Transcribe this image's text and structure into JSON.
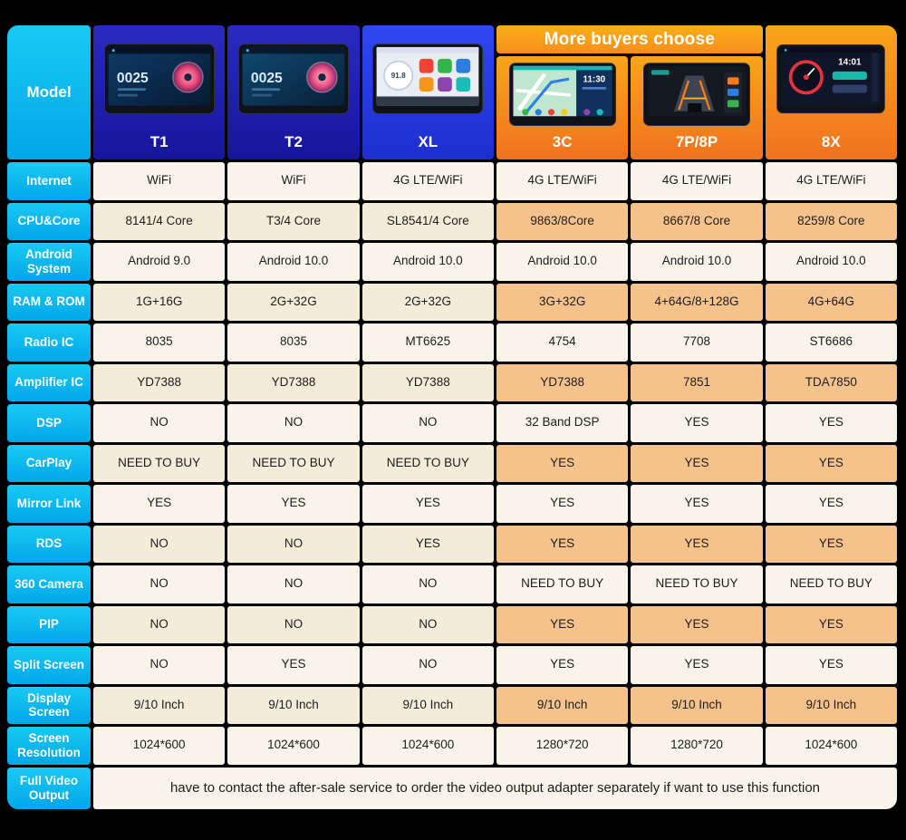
{
  "banner": {
    "text": "More buyers choose"
  },
  "model_header": {
    "label": "Model"
  },
  "chart_data": {
    "type": "table",
    "title": "Car stereo head unit model comparison",
    "columns": [
      "T1",
      "T2",
      "XL",
      "3C",
      "7P/8P",
      "8X"
    ],
    "highlighted_columns": [
      "3C",
      "7P/8P",
      "8X"
    ],
    "rows": [
      {
        "label": "Internet",
        "values": [
          "WiFi",
          "WiFi",
          "4G LTE/WiFi",
          "4G LTE/WiFi",
          "4G LTE/WiFi",
          "4G LTE/WiFi"
        ]
      },
      {
        "label": "CPU&Core",
        "values": [
          "8141/4 Core",
          "T3/4 Core",
          "SL8541/4 Core",
          "9863/8Core",
          "8667/8 Core",
          "8259/8 Core"
        ]
      },
      {
        "label": "Android System",
        "values": [
          "Android 9.0",
          "Android 10.0",
          "Android 10.0",
          "Android 10.0",
          "Android 10.0",
          "Android 10.0"
        ]
      },
      {
        "label": "RAM & ROM",
        "values": [
          "1G+16G",
          "2G+32G",
          "2G+32G",
          "3G+32G",
          "4+64G/8+128G",
          "4G+64G"
        ]
      },
      {
        "label": "Radio IC",
        "values": [
          "8035",
          "8035",
          "MT6625",
          "4754",
          "7708",
          "ST6686"
        ]
      },
      {
        "label": "Amplifier IC",
        "values": [
          "YD7388",
          "YD7388",
          "YD7388",
          "YD7388",
          "7851",
          "TDA7850"
        ]
      },
      {
        "label": "DSP",
        "values": [
          "NO",
          "NO",
          "NO",
          "32 Band DSP",
          "YES",
          "YES"
        ]
      },
      {
        "label": "CarPlay",
        "values": [
          "NEED TO BUY",
          "NEED TO BUY",
          "NEED TO BUY",
          "YES",
          "YES",
          "YES"
        ]
      },
      {
        "label": "Mirror Link",
        "values": [
          "YES",
          "YES",
          "YES",
          "YES",
          "YES",
          "YES"
        ]
      },
      {
        "label": "RDS",
        "values": [
          "NO",
          "NO",
          "YES",
          "YES",
          "YES",
          "YES"
        ]
      },
      {
        "label": "360 Camera",
        "values": [
          "NO",
          "NO",
          "NO",
          "NEED TO BUY",
          "NEED TO BUY",
          "NEED TO BUY"
        ]
      },
      {
        "label": "PIP",
        "values": [
          "NO",
          "NO",
          "NO",
          "YES",
          "YES",
          "YES"
        ]
      },
      {
        "label": "Split Screen",
        "values": [
          "NO",
          "YES",
          "NO",
          "YES",
          "YES",
          "YES"
        ]
      },
      {
        "label": "Display Screen",
        "values": [
          "9/10 Inch",
          "9/10 Inch",
          "9/10 Inch",
          "9/10 Inch",
          "9/10 Inch",
          "9/10 Inch"
        ]
      },
      {
        "label": "Screen Resolution",
        "values": [
          "1024*600",
          "1024*600",
          "1024*600",
          "1280*720",
          "1280*720",
          "1024*600"
        ]
      }
    ]
  },
  "footer": {
    "label": "Full Video Output",
    "text": "have to contact the after-sale service to order the video output adapter separately if want to use this function"
  },
  "devices": {
    "t1_screen_text": "0025",
    "t2_screen_text": "0025",
    "xl_gauge_text": "91.8",
    "c3_clock_text": "11:30",
    "x8_clock_text": "14:01"
  },
  "colors": {
    "label_cyan": "#00aeeb",
    "header_blue": "#1b1bae",
    "header_bright_blue": "#2438e8",
    "header_orange": "#f7941d",
    "row_light": "#f8f4ea",
    "row_cream": "#f3ecd9",
    "row_highlight_peach": "#f6c28c"
  }
}
